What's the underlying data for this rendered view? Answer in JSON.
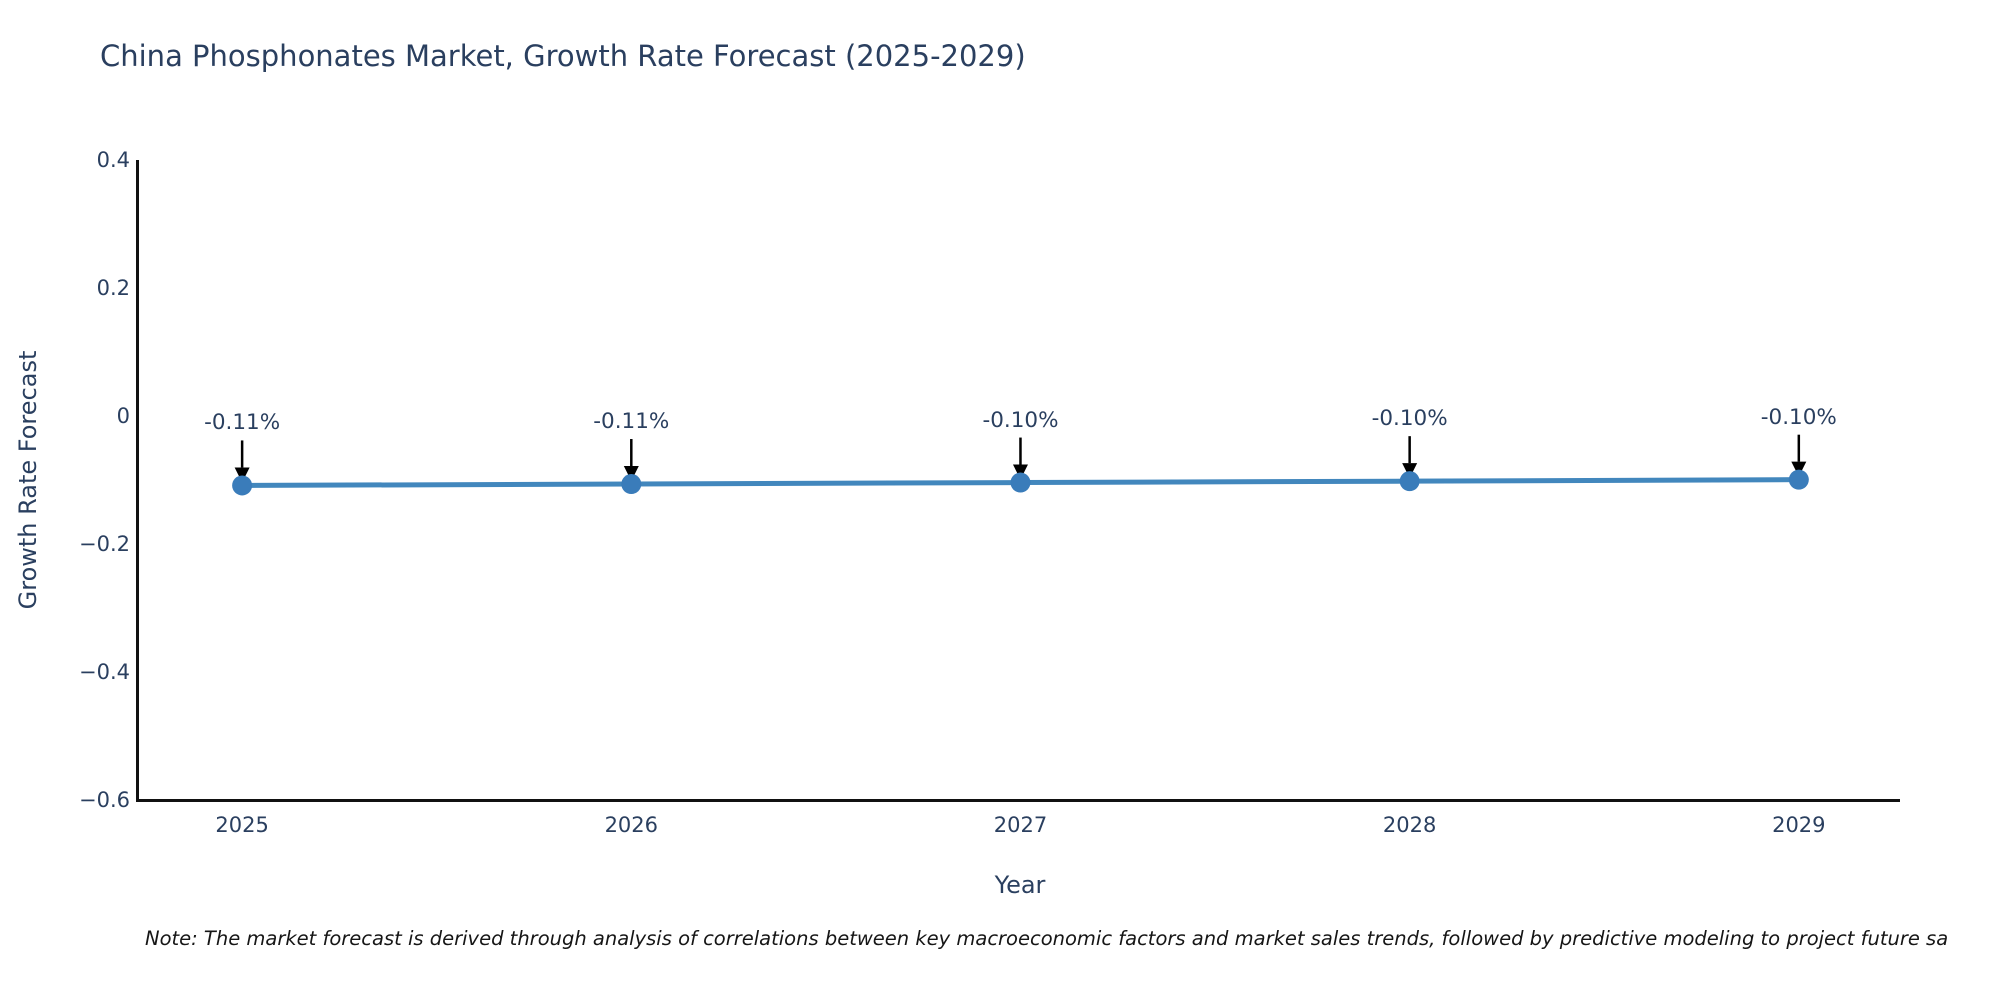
{
  "page": {
    "background": "#ffffff"
  },
  "title": "China Phosphonates Market, Growth Rate Forecast (2025-2029)",
  "note": "Note: The market forecast is derived through analysis of correlations between key macroeconomic factors and market sales trends, followed by predictive modeling to project future sa",
  "chart_data": {
    "type": "line",
    "title": "China Phosphonates Market, Growth Rate Forecast (2025-2029)",
    "xlabel": "Year",
    "ylabel": "Growth Rate Forecast",
    "x": [
      2025,
      2026,
      2027,
      2028,
      2029
    ],
    "series": [
      {
        "name": "Growth Rate Forecast",
        "values": [
          -0.1085,
          -0.1063,
          -0.104,
          -0.1018,
          -0.0995
        ],
        "point_labels": [
          "-0.11%",
          "-0.11%",
          "-0.10%",
          "-0.10%",
          "-0.10%"
        ]
      }
    ],
    "xtick_labels": [
      "2025",
      "2026",
      "2027",
      "2028",
      "2029"
    ],
    "ytick_values": [
      0.4,
      0.2,
      0,
      -0.2,
      -0.4,
      -0.6
    ],
    "ytick_labels": [
      "0.4",
      "0.2",
      "0",
      "−0.2",
      "−0.4",
      "−0.6"
    ],
    "xlim": [
      2024.735,
      2029.26
    ],
    "ylim": [
      -0.6,
      0.4
    ],
    "grid": false,
    "legend": "none",
    "annotations": "downward arrows from each data label to its marker",
    "colors": {
      "line": "#4287bd",
      "marker": "#3a7cba",
      "axis": "#111111",
      "arrow": "#000000",
      "text": "#2a3f5f",
      "note_text": "#161616"
    }
  }
}
